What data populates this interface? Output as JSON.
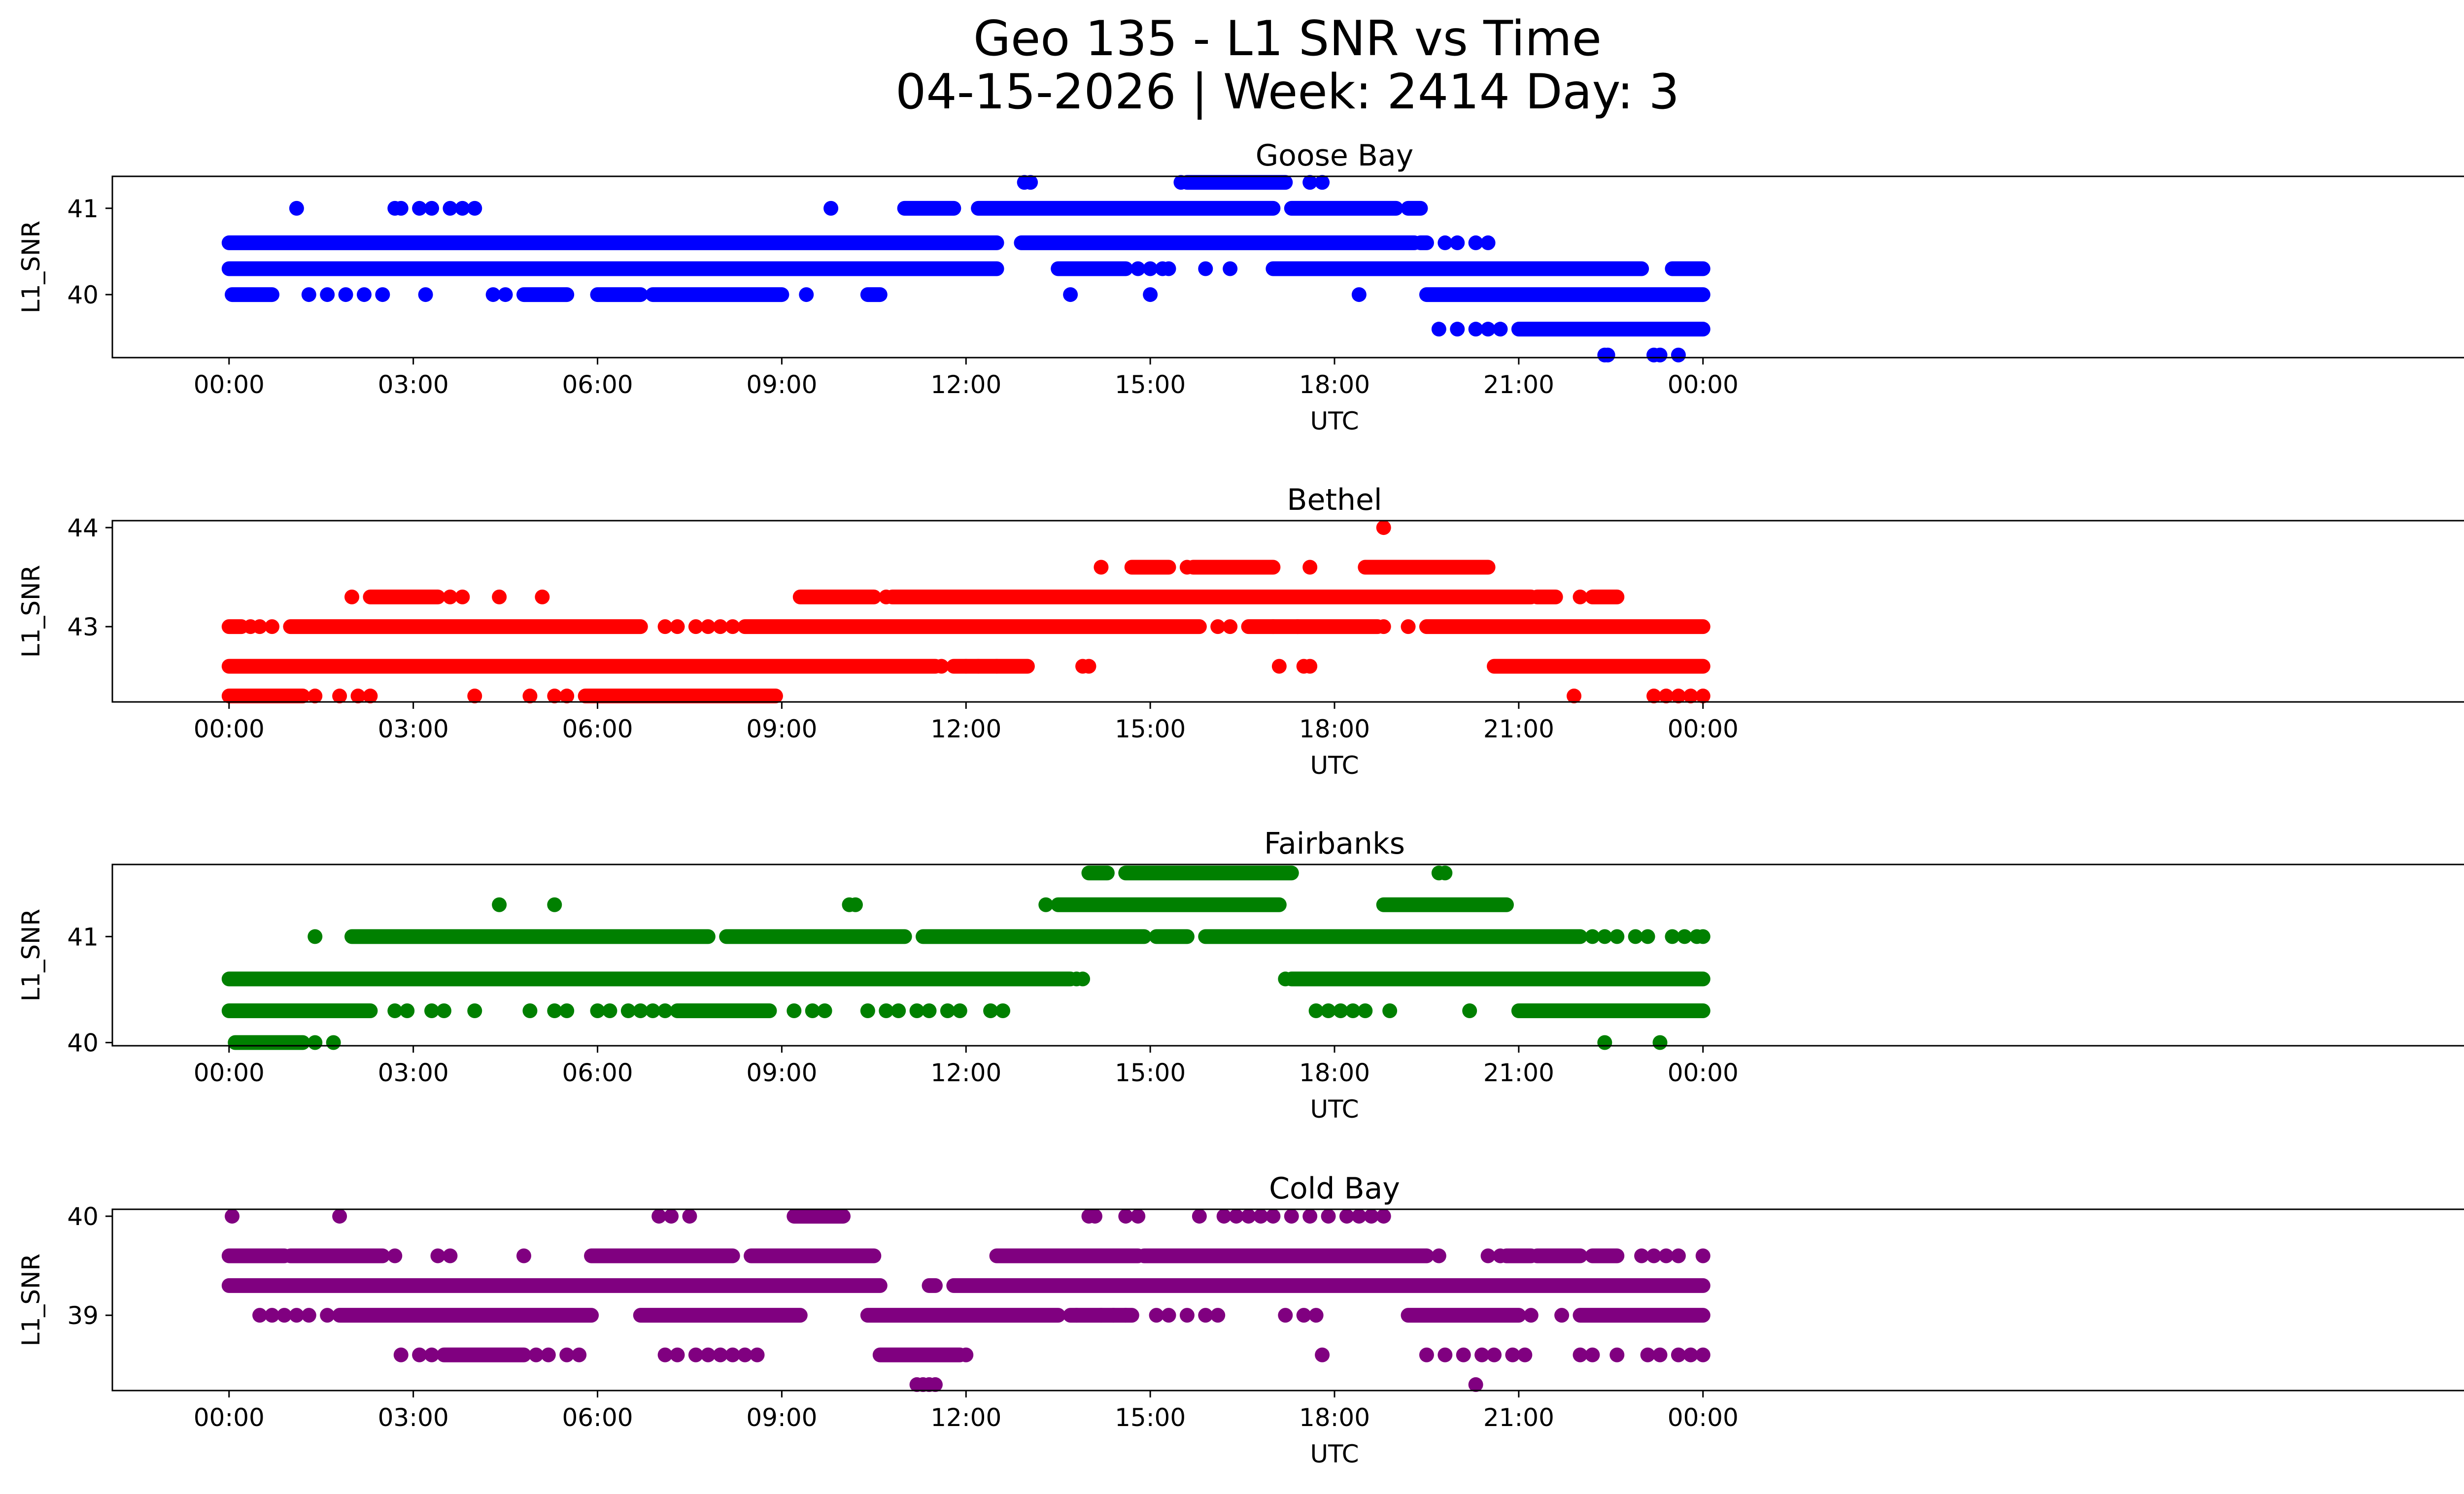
{
  "figure": {
    "title_line1": "Geo 135 - L1 SNR vs Time",
    "title_line2": "04-15-2026 | Week: 2414 Day: 3"
  },
  "chart_data": [
    {
      "type": "scatter",
      "title": "Goose Bay",
      "xlabel": "UTC",
      "ylabel": "L1_SNR",
      "color": "#0000ff",
      "xlim_hours": [
        -1.9,
        37.9
      ],
      "ylim": [
        39.27,
        41.37
      ],
      "yticks": [
        40,
        41
      ],
      "xticks": [
        "00:00",
        "03:00",
        "06:00",
        "09:00",
        "12:00",
        "15:00",
        "18:00",
        "21:00",
        "00:00"
      ],
      "series": [
        {
          "level": 40.6,
          "segments": [
            [
              0,
              12.5
            ],
            [
              12.9,
              19.3
            ],
            [
              19.4,
              19.5
            ]
          ],
          "points": [
            19.8,
            20.0,
            20.3,
            20.5
          ]
        },
        {
          "level": 40.3,
          "segments": [
            [
              0,
              12.5
            ],
            [
              13.5,
              14.6
            ],
            [
              17.0,
              23.0
            ],
            [
              23.5,
              24.0
            ]
          ],
          "points": [
            14.8,
            15.0,
            15.2,
            15.3,
            15.9,
            16.3
          ]
        },
        {
          "level": 40.0,
          "segments": [
            [
              0.05,
              0.7
            ],
            [
              4.8,
              5.5
            ],
            [
              6.0,
              6.7
            ],
            [
              6.9,
              9.0
            ],
            [
              10.4,
              10.6
            ],
            [
              19.5,
              24.0
            ]
          ],
          "points": [
            1.3,
            1.6,
            1.9,
            2.2,
            2.5,
            3.2,
            4.3,
            4.5,
            9.4,
            13.7,
            15.0,
            18.4
          ]
        },
        {
          "level": 39.6,
          "segments": [
            [
              21.0,
              24.0
            ]
          ],
          "points": [
            19.7,
            20.0,
            20.3,
            20.5,
            20.7
          ]
        },
        {
          "level": 41.0,
          "segments": [
            [
              11.0,
              11.8
            ],
            [
              12.2,
              17.0
            ],
            [
              17.3,
              19.0
            ],
            [
              19.2,
              19.4
            ]
          ],
          "points": [
            1.1,
            2.7,
            2.8,
            3.1,
            3.3,
            3.6,
            3.8,
            4.0,
            9.8
          ]
        },
        {
          "level": 41.3,
          "segments": [
            [
              15.6,
              17.2
            ]
          ],
          "points": [
            12.95,
            13.05,
            15.5,
            17.6,
            17.8
          ]
        },
        {
          "level": 39.3,
          "points": [
            22.4,
            22.45,
            23.2,
            23.3,
            23.6
          ]
        }
      ]
    },
    {
      "type": "scatter",
      "title": "Bethel",
      "xlabel": "UTC",
      "ylabel": "L1_SNR",
      "color": "#ff0000",
      "xlim_hours": [
        -1.9,
        37.9
      ],
      "ylim": [
        42.24,
        44.07
      ],
      "yticks": [
        43,
        44
      ],
      "xticks": [
        "00:00",
        "03:00",
        "06:00",
        "09:00",
        "12:00",
        "15:00",
        "18:00",
        "21:00",
        "00:00"
      ],
      "series": [
        {
          "level": 42.6,
          "segments": [
            [
              0,
              11.5
            ],
            [
              11.8,
              13.0
            ],
            [
              20.6,
              24.0
            ]
          ],
          "points": [
            11.6,
            12.0,
            12.2,
            12.5,
            13.9,
            14.0,
            17.1,
            17.5,
            17.6
          ]
        },
        {
          "level": 42.3,
          "segments": [
            [
              0,
              1.2
            ],
            [
              5.8,
              8.9
            ]
          ],
          "points": [
            1.4,
            1.8,
            2.1,
            2.3,
            4.0,
            4.9,
            5.3,
            5.5,
            21.9,
            23.2,
            23.4,
            23.6,
            23.8,
            24.0
          ]
        },
        {
          "level": 43.0,
          "segments": [
            [
              0,
              0.2
            ],
            [
              1.0,
              6.7
            ],
            [
              8.4,
              15.8
            ],
            [
              16.6,
              18.7
            ],
            [
              19.5,
              24.0
            ]
          ],
          "points": [
            0.35,
            0.5,
            0.7,
            7.1,
            7.3,
            7.6,
            7.8,
            8.0,
            8.2,
            16.1,
            16.3,
            17.0,
            17.4,
            18.8,
            19.2
          ]
        },
        {
          "level": 43.3,
          "segments": [
            [
              2.3,
              3.4
            ],
            [
              9.3,
              10.5
            ],
            [
              10.8,
              21.2
            ],
            [
              21.3,
              21.6
            ],
            [
              22.2,
              22.6
            ]
          ],
          "points": [
            2.0,
            3.6,
            3.8,
            4.4,
            5.1,
            10.7,
            22.0
          ]
        },
        {
          "level": 43.6,
          "segments": [
            [
              14.7,
              15.3
            ],
            [
              15.7,
              17.0
            ],
            [
              18.5,
              20.5
            ]
          ],
          "points": [
            14.2,
            15.6,
            17.6
          ]
        },
        {
          "level": 44.0,
          "points": [
            18.8
          ]
        }
      ]
    },
    {
      "type": "scatter",
      "title": "Fairbanks",
      "xlabel": "UTC",
      "ylabel": "L1_SNR",
      "color": "#008000",
      "xlim_hours": [
        -1.9,
        37.9
      ],
      "ylim": [
        39.97,
        41.68
      ],
      "yticks": [
        40,
        41
      ],
      "xticks": [
        "00:00",
        "03:00",
        "06:00",
        "09:00",
        "12:00",
        "15:00",
        "18:00",
        "21:00",
        "00:00"
      ],
      "series": [
        {
          "level": 40.6,
          "segments": [
            [
              0,
              13.7
            ],
            [
              17.3,
              24.0
            ]
          ],
          "points": [
            13.8,
            13.9,
            17.2
          ]
        },
        {
          "level": 40.3,
          "segments": [
            [
              0,
              2.3
            ],
            [
              7.3,
              8.8
            ],
            [
              21.0,
              24.0
            ]
          ],
          "points": [
            2.7,
            2.9,
            3.3,
            3.5,
            4.0,
            4.9,
            5.3,
            5.5,
            6.0,
            6.2,
            6.5,
            6.7,
            6.9,
            7.1,
            9.2,
            9.5,
            9.7,
            10.4,
            10.7,
            10.9,
            11.2,
            11.4,
            11.7,
            11.9,
            12.4,
            12.6,
            17.7,
            17.9,
            18.1,
            18.3,
            18.5,
            18.9,
            20.2
          ]
        },
        {
          "level": 40.0,
          "segments": [
            [
              0.1,
              1.2
            ]
          ],
          "points": [
            1.4,
            1.7,
            22.4,
            23.3
          ]
        },
        {
          "level": 41.0,
          "segments": [
            [
              2.0,
              7.8
            ],
            [
              8.1,
              11.0
            ],
            [
              11.3,
              14.9
            ],
            [
              15.1,
              15.6
            ],
            [
              15.9,
              22.0
            ]
          ],
          "points": [
            1.4,
            22.2,
            22.4,
            22.6,
            22.9,
            23.1,
            23.5,
            23.7,
            23.9,
            24.0
          ]
        },
        {
          "level": 41.3,
          "segments": [
            [
              13.5,
              17.1
            ],
            [
              18.8,
              20.8
            ]
          ],
          "points": [
            4.4,
            5.3,
            10.1,
            10.2,
            13.3
          ]
        },
        {
          "level": 41.6,
          "segments": [
            [
              14.0,
              14.3
            ],
            [
              14.6,
              17.3
            ]
          ],
          "points": [
            19.7,
            19.8
          ]
        }
      ]
    },
    {
      "type": "scatter",
      "title": "Cold Bay",
      "xlabel": "UTC",
      "ylabel": "L1_SNR",
      "color": "#800080",
      "xlim_hours": [
        -1.9,
        37.9
      ],
      "ylim": [
        38.24,
        40.07
      ],
      "yticks": [
        39,
        40
      ],
      "xticks": [
        "00:00",
        "03:00",
        "06:00",
        "09:00",
        "12:00",
        "15:00",
        "18:00",
        "21:00",
        "00:00"
      ],
      "series": [
        {
          "level": 39.3,
          "segments": [
            [
              0,
              10.6
            ],
            [
              11.4,
              11.5
            ],
            [
              11.8,
              24.0
            ]
          ],
          "points": []
        },
        {
          "level": 39.6,
          "segments": [
            [
              0,
              0.9
            ],
            [
              1.0,
              2.5
            ],
            [
              5.9,
              8.2
            ],
            [
              8.5,
              10.5
            ],
            [
              12.5,
              14.8
            ],
            [
              14.9,
              19.5
            ],
            [
              20.8,
              21.2
            ],
            [
              21.3,
              22.0
            ],
            [
              22.2,
              22.6
            ]
          ],
          "points": [
            2.7,
            3.4,
            3.6,
            4.8,
            19.7,
            20.5,
            20.7,
            23.0,
            23.2,
            23.4,
            23.6,
            24.0
          ]
        },
        {
          "level": 39.0,
          "segments": [
            [
              1.8,
              5.9
            ],
            [
              6.7,
              9.3
            ],
            [
              10.4,
              13.5
            ],
            [
              13.7,
              14.7
            ],
            [
              19.2,
              21.0
            ],
            [
              22.0,
              24.0
            ]
          ],
          "points": [
            0.5,
            0.7,
            0.9,
            1.1,
            1.3,
            1.6,
            13.8,
            14.2,
            14.4,
            14.6,
            15.1,
            15.3,
            15.6,
            15.9,
            16.1,
            17.2,
            17.5,
            17.7,
            21.2,
            21.7
          ]
        },
        {
          "level": 38.6,
          "segments": [
            [
              3.5,
              4.8
            ],
            [
              10.6,
              11.9
            ]
          ],
          "points": [
            2.8,
            3.1,
            3.3,
            5.0,
            5.2,
            5.5,
            5.7,
            7.1,
            7.3,
            7.6,
            7.8,
            8.0,
            8.2,
            8.4,
            8.6,
            12.0,
            17.8,
            19.5,
            19.8,
            20.1,
            20.4,
            20.6,
            20.9,
            21.1,
            22.0,
            22.2,
            22.6,
            23.1,
            23.3,
            23.6,
            23.8,
            24.0
          ]
        },
        {
          "level": 40.0,
          "segments": [
            [
              9.2,
              10.0
            ]
          ],
          "points": [
            0.05,
            1.8,
            7.0,
            7.2,
            7.5,
            14.0,
            14.1,
            14.6,
            14.8,
            15.8,
            16.2,
            16.4,
            16.6,
            16.8,
            17.0,
            17.3,
            17.6,
            17.9,
            18.2,
            18.4,
            18.6,
            18.8
          ]
        },
        {
          "level": 38.3,
          "points": [
            11.2,
            11.3,
            11.4,
            11.5,
            20.3
          ]
        }
      ]
    }
  ]
}
